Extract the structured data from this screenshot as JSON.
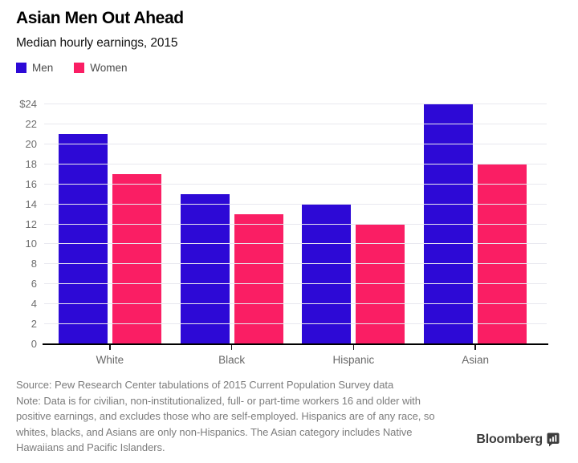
{
  "chart_data": {
    "type": "bar",
    "title": "Asian Men Out Ahead",
    "subtitle": "Median hourly earnings, 2015",
    "categories": [
      "White",
      "Black",
      "Hispanic",
      "Asian"
    ],
    "series": [
      {
        "name": "Men",
        "color": "#2d09d6",
        "values": [
          21,
          15,
          14,
          24
        ]
      },
      {
        "name": "Women",
        "color": "#fa1e64",
        "values": [
          17,
          13,
          12,
          18
        ]
      }
    ],
    "xlabel": "",
    "ylabel": "",
    "ylim": [
      0,
      24
    ],
    "y_ticks": [
      0,
      2,
      4,
      6,
      8,
      10,
      12,
      14,
      16,
      18,
      20,
      22,
      24
    ],
    "y_tick_labels": [
      "0",
      "2",
      "4",
      "6",
      "8",
      "10",
      "12",
      "14",
      "16",
      "18",
      "20",
      "22",
      "$24"
    ],
    "grid": true,
    "legend_position": "top-left"
  },
  "footer": {
    "source": "Source: Pew Research Center tabulations of 2015 Current Population Survey data",
    "note": "Note: Data is for civilian, non-institutionalized, full- or part-time workers 16 and older with positive earnings, and excludes those who are self-employed. Hispanics are of any race, so whites, blacks, and Asians are only non-Hispanics. The Asian category includes Native Hawaiians and Pacific Islanders."
  },
  "brand": {
    "name": "Bloomberg"
  },
  "colors": {
    "men": "#2d09d6",
    "women": "#fa1e64",
    "grid": "#e8e8ef",
    "axis_text": "#6e6e6e",
    "footer_text": "#7c7c7c",
    "baseline": "#000000",
    "brand_text": "#3c3c3c"
  }
}
